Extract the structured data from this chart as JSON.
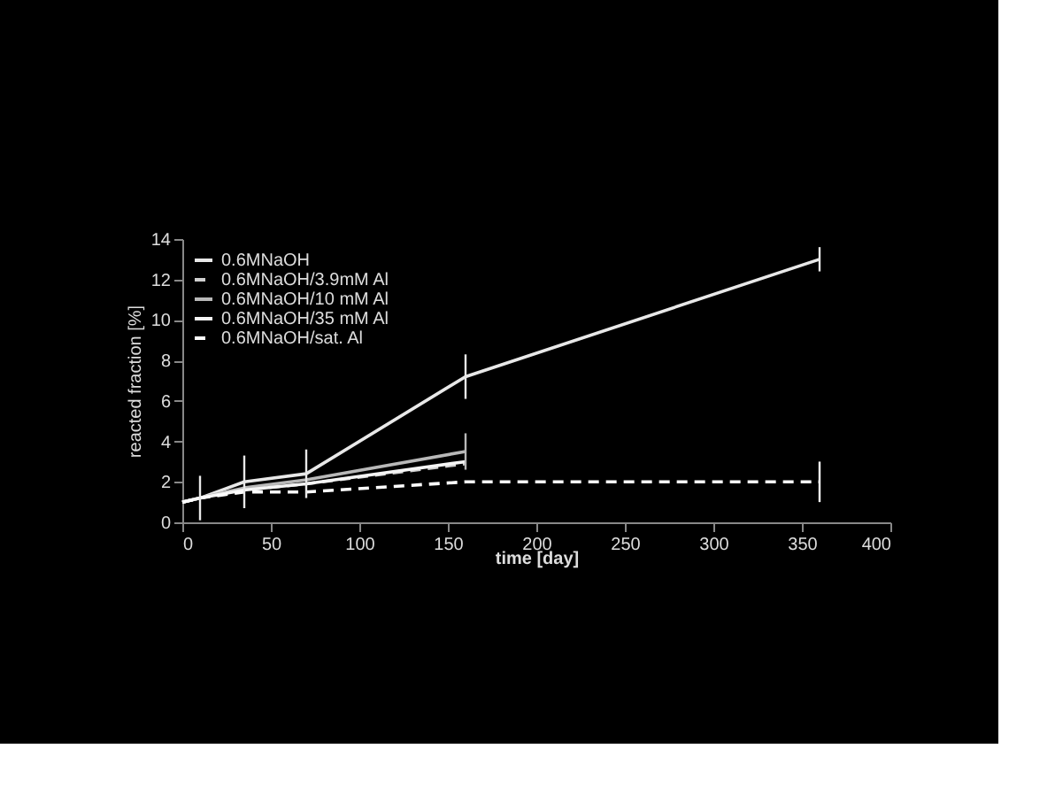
{
  "chart_data": {
    "type": "line",
    "xlabel": "time [day]",
    "ylabel": "reacted fraction [%]",
    "xlim": [
      0,
      400
    ],
    "xticks": [
      0,
      50,
      100,
      150,
      200,
      250,
      300,
      350,
      400
    ],
    "ylim": [
      0,
      14
    ],
    "yticks": [
      0,
      2,
      4,
      6,
      8,
      10,
      12,
      14
    ],
    "legend": "top left",
    "grid": false,
    "marker": "none",
    "series": [
      {
        "name": "0.6MNaOH",
        "color": "#e8e8e8",
        "line_style": "solid",
        "x": [
          0,
          10,
          35,
          70,
          160,
          360
        ],
        "values": [
          1.0,
          1.2,
          2.0,
          2.4,
          7.2,
          13.0
        ],
        "errors": [
          null,
          1.1,
          1.3,
          1.2,
          1.1,
          0.6
        ]
      },
      {
        "name": "0.6MNaOH/3.9mM Al",
        "color": "#d0d0d0",
        "line_style": "dashed",
        "x": [
          0,
          10,
          35,
          70,
          160
        ],
        "values": [
          1.0,
          1.2,
          1.6,
          1.9,
          2.9
        ],
        "errors": [
          null,
          null,
          null,
          null,
          null
        ]
      },
      {
        "name": "0.6MNaOH/10 mM Al",
        "color": "#b8b8b8",
        "line_style": "solid",
        "x": [
          0,
          10,
          35,
          70,
          160
        ],
        "values": [
          1.0,
          1.2,
          1.7,
          2.1,
          3.5
        ],
        "errors": [
          null,
          null,
          null,
          null,
          0.9
        ]
      },
      {
        "name": "0.6MNaOH/35 mM Al",
        "color": "#f5f5f5",
        "line_style": "solid",
        "x": [
          0,
          10,
          35,
          70,
          160
        ],
        "values": [
          1.0,
          1.2,
          1.6,
          1.9,
          3.0
        ],
        "errors": [
          null,
          null,
          null,
          null,
          null
        ]
      },
      {
        "name": "0.6MNaOH/sat. Al",
        "color": "#ffffff",
        "line_style": "dashed",
        "x": [
          0,
          10,
          35,
          70,
          160,
          360
        ],
        "values": [
          1.0,
          1.2,
          1.5,
          1.5,
          2.0,
          2.0
        ],
        "errors": [
          null,
          null,
          null,
          null,
          null,
          1.0
        ]
      }
    ]
  }
}
